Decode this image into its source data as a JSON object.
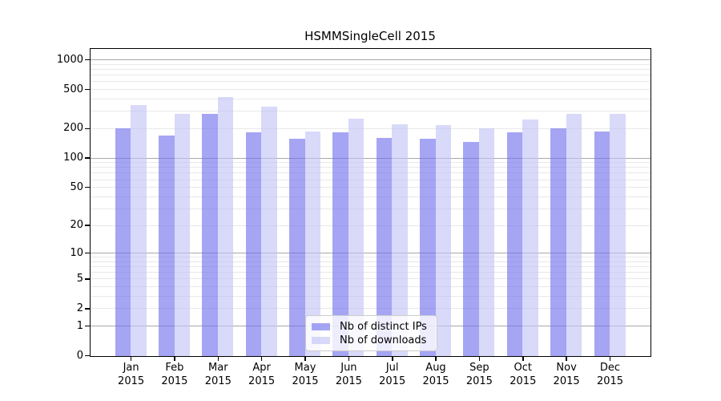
{
  "chart_data": {
    "type": "bar",
    "title": "HSMMSingleCell 2015",
    "categories": [
      "Jan",
      "Feb",
      "Mar",
      "Apr",
      "May",
      "Jun",
      "Jul",
      "Aug",
      "Sep",
      "Oct",
      "Nov",
      "Dec"
    ],
    "x_year": "2015",
    "series": [
      {
        "name": "Nb of distinct IPs",
        "key": "distinct-ips",
        "color": "rgba(110,110,238,0.62)",
        "values": [
          204,
          173,
          286,
          186,
          159,
          184,
          161,
          158,
          149,
          184,
          204,
          187
        ]
      },
      {
        "name": "Nb of downloads",
        "key": "downloads",
        "color": "rgba(193,193,246,0.62)",
        "values": [
          352,
          286,
          424,
          341,
          189,
          256,
          223,
          221,
          204,
          251,
          285,
          285
        ]
      }
    ],
    "scale": "log1p",
    "ylim": [
      0,
      1280
    ],
    "y_ticks": [
      0,
      1,
      2,
      5,
      10,
      20,
      50,
      100,
      200,
      500,
      1000
    ],
    "grid": {
      "on": true,
      "major_values": [
        1,
        10,
        100,
        1000
      ],
      "major_color": "#a8a8a8",
      "minor_color": "#e8e8e8"
    },
    "legend_position": "bottom-center",
    "axis_color": "#000000",
    "background_color": "#ffffff"
  }
}
